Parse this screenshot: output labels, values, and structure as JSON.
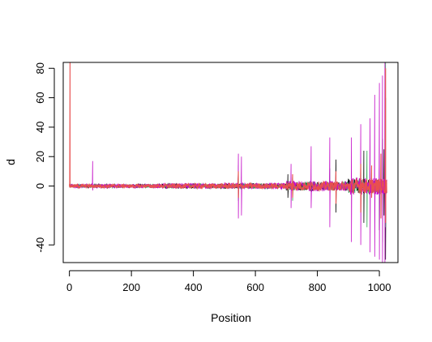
{
  "chart_data": {
    "type": "line",
    "title": "",
    "xlabel": "Position",
    "ylabel": "d",
    "xlim": [
      -20,
      1060
    ],
    "ylim": [
      -52,
      84
    ],
    "x_ticks": [
      0,
      200,
      400,
      600,
      800,
      1000
    ],
    "x_tick_labels": [
      "0",
      "200",
      "400",
      "600",
      "800",
      "1000"
    ],
    "y_ticks": [
      -40,
      0,
      20,
      40,
      60,
      80
    ],
    "y_tick_labels": [
      "-40",
      "0",
      "20",
      "40",
      "60",
      "80"
    ],
    "grid": false,
    "legend": "none",
    "series": [
      {
        "color": "#000000",
        "spikes": [
          [
            545,
            12,
            -6
          ],
          [
            705,
            8,
            -8
          ],
          [
            860,
            18,
            -18
          ],
          [
            950,
            24,
            -25
          ],
          [
            1000,
            30,
            -30
          ],
          [
            1015,
            25,
            -20
          ],
          [
            1020,
            60,
            -50
          ]
        ]
      },
      {
        "color": "#2fa84f",
        "spikes": [
          [
            545,
            14,
            -10
          ],
          [
            720,
            8,
            -10
          ],
          [
            840,
            12,
            -10
          ],
          [
            960,
            24,
            -28
          ],
          [
            1010,
            32,
            -38
          ],
          [
            1020,
            84,
            -28
          ]
        ]
      },
      {
        "color": "#c40fc8",
        "spikes": [
          [
            75,
            17,
            -3
          ],
          [
            545,
            22,
            -22
          ],
          [
            555,
            20,
            -20
          ],
          [
            715,
            15,
            -15
          ],
          [
            780,
            27,
            -15
          ],
          [
            840,
            33,
            -28
          ],
          [
            910,
            33,
            -38
          ],
          [
            940,
            42,
            -40
          ],
          [
            970,
            46,
            -45
          ],
          [
            985,
            62,
            -48
          ],
          [
            1000,
            70,
            -50
          ],
          [
            1010,
            75,
            -52
          ],
          [
            1018,
            84,
            -52
          ]
        ]
      },
      {
        "color": "#e8504f",
        "spikes": [
          [
            2,
            84,
            -1
          ],
          [
            545,
            10,
            -8
          ],
          [
            720,
            8,
            -8
          ],
          [
            860,
            10,
            -12
          ],
          [
            940,
            15,
            -18
          ],
          [
            975,
            14,
            -8
          ],
          [
            1005,
            22,
            -22
          ],
          [
            1020,
            80,
            -25
          ]
        ]
      }
    ]
  }
}
